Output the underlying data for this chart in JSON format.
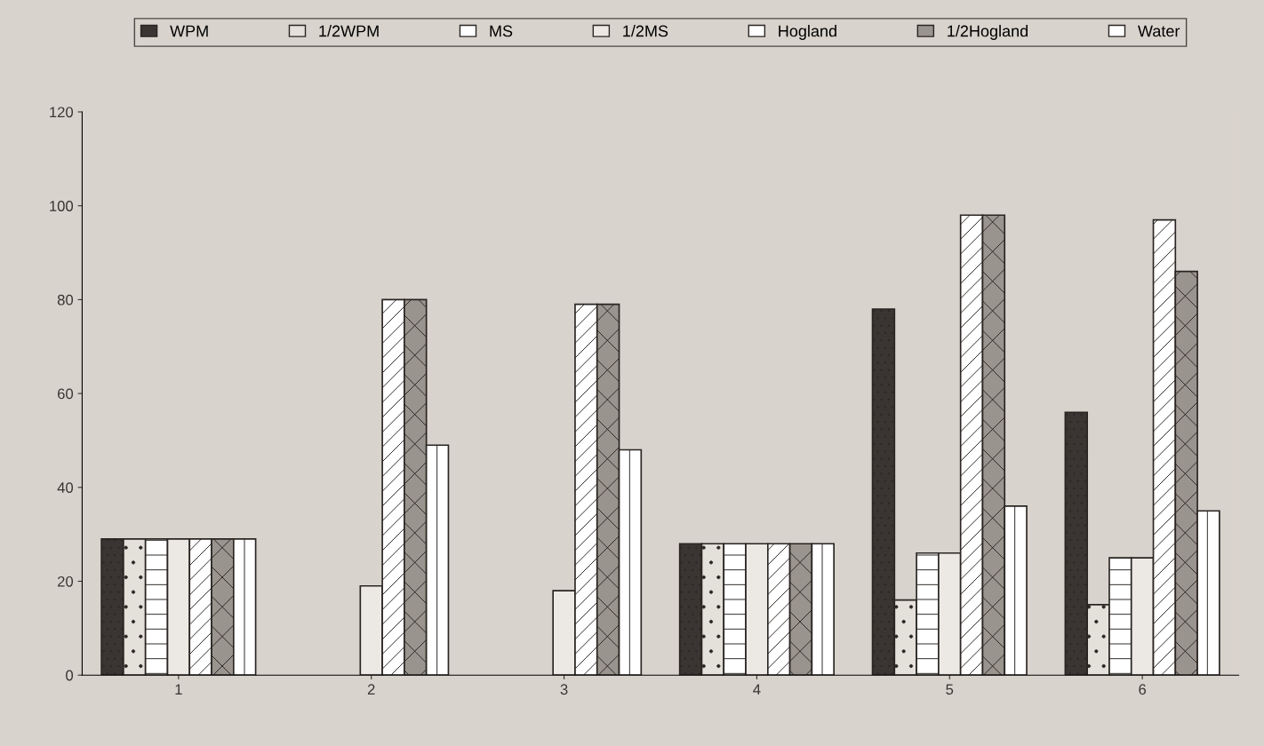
{
  "chart_data": {
    "type": "bar",
    "categories": [
      "1",
      "2",
      "3",
      "4",
      "5",
      "6"
    ],
    "ylim": [
      0,
      120
    ],
    "yticks": [
      0,
      20,
      40,
      60,
      80,
      100,
      120
    ],
    "grid": false,
    "legend": "top",
    "series": [
      {
        "name": "WPM",
        "color": "#3a3532",
        "values": [
          29,
          0,
          0,
          28,
          78,
          56
        ]
      },
      {
        "name": "1/2WPM",
        "color": "#e4e0da",
        "values": [
          29,
          0,
          0,
          28,
          16,
          15
        ]
      },
      {
        "name": "MS",
        "color": "#ffffff",
        "values": [
          29,
          0,
          0,
          28,
          26,
          25
        ]
      },
      {
        "name": "1/2MS",
        "color": "#ece9e4",
        "values": [
          29,
          19,
          18,
          28,
          26,
          25
        ]
      },
      {
        "name": "Hogland",
        "color": "#ffffff",
        "values": [
          29,
          80,
          79,
          28,
          98,
          97
        ]
      },
      {
        "name": "1/2Hogland",
        "color": "#9a948e",
        "values": [
          29,
          80,
          79,
          28,
          98,
          86
        ]
      },
      {
        "name": "Water",
        "color": "#ffffff",
        "values": [
          29,
          49,
          48,
          28,
          36,
          35
        ]
      }
    ]
  }
}
